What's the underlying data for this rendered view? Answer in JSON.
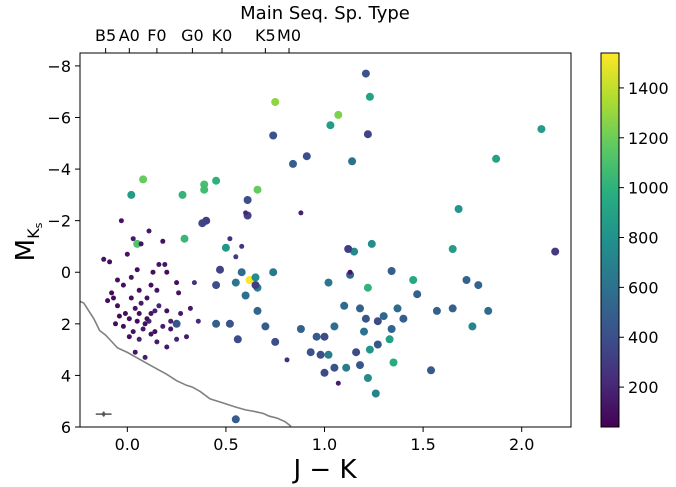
{
  "chart_data": {
    "type": "scatter",
    "xlabel": "J − K",
    "ylabel": "M",
    "ylabel_sub": "K",
    "ylabel_subsub": "s",
    "xlim": [
      -0.24,
      2.25
    ],
    "ylim": [
      6,
      -8.5
    ],
    "y_inverted": true,
    "x_ticks": [
      {
        "v": 0.0,
        "label": "0.0"
      },
      {
        "v": 0.5,
        "label": "0.5"
      },
      {
        "v": 1.0,
        "label": "1.0"
      },
      {
        "v": 1.5,
        "label": "1.5"
      },
      {
        "v": 2.0,
        "label": "2.0"
      }
    ],
    "y_ticks": [
      {
        "v": -8,
        "label": "−8"
      },
      {
        "v": -6,
        "label": "−6"
      },
      {
        "v": -4,
        "label": "−4"
      },
      {
        "v": -2,
        "label": "−2"
      },
      {
        "v": 0,
        "label": "0"
      },
      {
        "v": 2,
        "label": "2"
      },
      {
        "v": 4,
        "label": "4"
      },
      {
        "v": 6,
        "label": "6"
      }
    ],
    "top_axis": {
      "title": "Main Seq. Sp. Type",
      "ticks": [
        {
          "v": -0.11,
          "label": "B5"
        },
        {
          "v": 0.01,
          "label": "A0"
        },
        {
          "v": 0.15,
          "label": "F0"
        },
        {
          "v": 0.33,
          "label": "G0"
        },
        {
          "v": 0.48,
          "label": "K0"
        },
        {
          "v": 0.7,
          "label": "K5"
        },
        {
          "v": 0.82,
          "label": "M0"
        }
      ]
    },
    "colorbar": {
      "colormap": "viridis",
      "range": [
        40,
        1540
      ],
      "ticks": [
        {
          "v": 200,
          "label": "200"
        },
        {
          "v": 400,
          "label": "400"
        },
        {
          "v": 600,
          "label": "600"
        },
        {
          "v": 800,
          "label": "800"
        },
        {
          "v": 1000,
          "label": "1000"
        },
        {
          "v": 1200,
          "label": "1200"
        },
        {
          "v": 1400,
          "label": "1400"
        }
      ]
    },
    "main_sequence_curve": [
      [
        -0.24,
        3.2
      ],
      [
        -0.22,
        3.4
      ],
      [
        -0.2,
        4.1
      ],
      [
        -0.17,
        5.1
      ],
      [
        -0.14,
        6.4
      ],
      [
        -0.11,
        6.9
      ],
      [
        -0.08,
        7.6
      ],
      [
        -0.05,
        8.3
      ],
      [
        0.0,
        8.8
      ],
      [
        0.05,
        9.4
      ],
      [
        0.1,
        10.0
      ],
      [
        0.15,
        10.6
      ],
      [
        0.2,
        11.2
      ],
      [
        0.25,
        11.9
      ],
      [
        0.3,
        12.4
      ],
      [
        0.33,
        12.6
      ],
      [
        0.37,
        13.1
      ],
      [
        0.42,
        13.9
      ],
      [
        0.48,
        14.3
      ],
      [
        0.55,
        14.8
      ],
      [
        0.6,
        15.1
      ],
      [
        0.65,
        15.3
      ],
      [
        0.69,
        15.5
      ],
      [
        0.72,
        15.8
      ],
      [
        0.76,
        16.0
      ],
      [
        0.8,
        16.4
      ],
      [
        0.83,
        16.9
      ]
    ],
    "error_bar": {
      "x": -0.12,
      "y": 5.5,
      "xerr": 0.04,
      "yerr": 0.1
    },
    "series": [
      {
        "points": [
          [
            0.62,
            0.3,
            1540
          ],
          [
            0.75,
            -6.6,
            1280
          ],
          [
            1.07,
            -6.1,
            1240
          ],
          [
            0.08,
            -3.6,
            1180
          ],
          [
            0.66,
            -3.2,
            1180
          ],
          [
            0.39,
            -3.4,
            1090
          ],
          [
            0.39,
            -3.2,
            1070
          ],
          [
            0.45,
            -3.55,
            1000
          ],
          [
            0.28,
            -3.0,
            1020
          ],
          [
            0.29,
            -1.3,
            1040
          ],
          [
            0.05,
            -1.1,
            1120
          ],
          [
            0.02,
            -3.0,
            860
          ],
          [
            1.23,
            -6.8,
            900
          ],
          [
            1.03,
            -5.7,
            870
          ],
          [
            1.87,
            -4.4,
            900
          ],
          [
            2.1,
            -5.55,
            860
          ],
          [
            1.22,
            0.6,
            1010
          ],
          [
            1.45,
            0.3,
            940
          ],
          [
            1.65,
            -0.9,
            860
          ],
          [
            1.68,
            -2.45,
            820
          ],
          [
            1.24,
            -1.1,
            780
          ],
          [
            1.15,
            -0.8,
            740
          ],
          [
            1.33,
            2.6,
            880
          ],
          [
            1.35,
            3.5,
            960
          ],
          [
            1.23,
            3.0,
            820
          ],
          [
            1.22,
            4.1,
            760
          ],
          [
            1.26,
            4.7,
            720
          ],
          [
            1.2,
            2.3,
            600
          ],
          [
            1.11,
            3.7,
            660
          ],
          [
            1.02,
            3.2,
            680
          ],
          [
            0.65,
            0.2,
            760
          ],
          [
            0.66,
            0.6,
            700
          ],
          [
            0.55,
            0.4,
            620
          ],
          [
            0.5,
            -0.95,
            820
          ],
          [
            0.66,
            1.5,
            540
          ],
          [
            0.74,
            0.0,
            640
          ],
          [
            0.58,
            0.0,
            560
          ],
          [
            0.6,
            0.9,
            580
          ],
          [
            1.02,
            0.4,
            620
          ],
          [
            1.13,
            0.1,
            520
          ],
          [
            1.34,
            -0.05,
            480
          ],
          [
            1.37,
            1.4,
            560
          ],
          [
            1.47,
            0.85,
            500
          ],
          [
            1.57,
            1.5,
            500
          ],
          [
            1.72,
            0.3,
            520
          ],
          [
            1.75,
            2.1,
            720
          ],
          [
            1.83,
            1.5,
            560
          ],
          [
            1.78,
            0.5,
            520
          ],
          [
            1.65,
            1.4,
            500
          ],
          [
            1.1,
            1.3,
            560
          ],
          [
            1.18,
            1.4,
            500
          ],
          [
            1.3,
            1.7,
            540
          ],
          [
            1.34,
            2.2,
            520
          ],
          [
            1.4,
            1.8,
            480
          ],
          [
            0.96,
            2.5,
            460
          ],
          [
            1.05,
            2.1,
            580
          ],
          [
            0.88,
            2.2,
            500
          ],
          [
            0.7,
            2.1,
            480
          ],
          [
            0.93,
            3.1,
            420
          ],
          [
            0.98,
            3.2,
            400
          ],
          [
            0.75,
            2.7,
            400
          ],
          [
            0.56,
            2.6,
            380
          ],
          [
            1.0,
            3.9,
            380
          ],
          [
            1.18,
            3.6,
            440
          ],
          [
            1.27,
            2.8,
            440
          ],
          [
            1.16,
            3.1,
            380
          ],
          [
            1.05,
            3.7,
            420
          ],
          [
            1.21,
            1.8,
            420
          ],
          [
            1.27,
            1.9,
            380
          ],
          [
            0.55,
            5.7,
            480
          ],
          [
            0.74,
            -5.3,
            420
          ],
          [
            0.84,
            -4.2,
            500
          ],
          [
            1.14,
            -4.3,
            600
          ],
          [
            0.91,
            -4.5,
            400
          ],
          [
            0.61,
            -2.8,
            400
          ],
          [
            0.61,
            -2.2,
            340
          ],
          [
            0.38,
            -1.9,
            360
          ],
          [
            0.4,
            -2.0,
            330
          ],
          [
            1.22,
            -5.35,
            340
          ],
          [
            1.21,
            -7.7,
            420
          ],
          [
            2.17,
            -0.8,
            300
          ],
          [
            1.12,
            -0.9,
            320
          ],
          [
            1.0,
            2.5,
            380
          ],
          [
            1.54,
            3.8,
            460
          ],
          [
            0.25,
            2.0,
            440
          ],
          [
            0.52,
            2.0,
            420
          ],
          [
            0.45,
            2.0,
            500
          ],
          [
            0.45,
            0.5,
            400
          ],
          [
            0.47,
            -0.1,
            340
          ],
          [
            0.65,
            0.5,
            320
          ]
        ]
      },
      {
        "points": [
          [
            0.6,
            -2.3,
            200
          ],
          [
            0.88,
            -2.3,
            180
          ],
          [
            0.52,
            -1.3,
            240
          ],
          [
            0.55,
            -0.6,
            300
          ],
          [
            0.58,
            -1.0,
            260
          ],
          [
            1.13,
            0.0,
            120
          ],
          [
            1.07,
            4.3,
            160
          ],
          [
            0.81,
            3.4,
            240
          ],
          [
            0.34,
            0.4,
            260
          ],
          [
            0.36,
            1.9,
            220
          ],
          [
            0.22,
            1.9,
            180
          ],
          [
            0.18,
            2.1,
            160
          ],
          [
            0.14,
            1.5,
            180
          ],
          [
            0.11,
            1.9,
            200
          ],
          [
            0.15,
            2.7,
            160
          ],
          [
            0.16,
            1.3,
            200
          ],
          [
            0.12,
            1.6,
            120
          ],
          [
            0.08,
            2.2,
            140
          ],
          [
            0.1,
            1.8,
            100
          ],
          [
            0.04,
            1.4,
            120
          ],
          [
            0.03,
            2.3,
            110
          ],
          [
            0.01,
            1.8,
            100
          ],
          [
            -0.01,
            1.6,
            90
          ],
          [
            -0.04,
            1.7,
            80
          ],
          [
            -0.05,
            1.3,
            100
          ],
          [
            0.07,
            1.2,
            160
          ],
          [
            0.06,
            2.6,
            180
          ],
          [
            0.09,
            3.3,
            160
          ],
          [
            0.2,
            2.9,
            140
          ],
          [
            0.25,
            2.6,
            180
          ],
          [
            0.3,
            2.5,
            160
          ],
          [
            0.27,
            1.6,
            140
          ],
          [
            0.32,
            1.4,
            140
          ],
          [
            0.15,
            0.7,
            120
          ],
          [
            0.13,
            0.0,
            100
          ],
          [
            0.16,
            -0.3,
            120
          ],
          [
            0.05,
            -0.1,
            100
          ],
          [
            0.02,
            0.2,
            120
          ],
          [
            -0.02,
            0.5,
            100
          ],
          [
            -0.05,
            0.3,
            90
          ],
          [
            -0.08,
            0.8,
            80
          ],
          [
            -0.1,
            1.1,
            80
          ],
          [
            -0.06,
            2.0,
            90
          ],
          [
            0.06,
            0.7,
            100
          ],
          [
            0.1,
            1.0,
            120
          ],
          [
            0.12,
            2.4,
            110
          ],
          [
            0.04,
            3.1,
            120
          ],
          [
            0.22,
            2.2,
            120
          ],
          [
            0.0,
            -0.7,
            120
          ],
          [
            -0.03,
            -2.0,
            120
          ],
          [
            0.11,
            -1.6,
            140
          ],
          [
            0.07,
            -1.1,
            120
          ],
          [
            0.18,
            -1.2,
            100
          ],
          [
            0.03,
            -1.3,
            140
          ],
          [
            -0.12,
            -0.5,
            120
          ],
          [
            -0.09,
            -0.4,
            100
          ],
          [
            0.19,
            -0.3,
            120
          ],
          [
            0.25,
            0.4,
            100
          ],
          [
            0.26,
            0.8,
            120
          ],
          [
            0.2,
            1.5,
            100
          ],
          [
            0.09,
            2.0,
            90
          ],
          [
            -0.02,
            2.1,
            90
          ],
          [
            0.01,
            2.5,
            100
          ],
          [
            0.06,
            1.6,
            90
          ],
          [
            0.14,
            2.3,
            100
          ],
          [
            0.05,
            1.9,
            80
          ],
          [
            -0.07,
            1.0,
            80
          ],
          [
            0.02,
            1.0,
            90
          ],
          [
            0.12,
            0.5,
            90
          ],
          [
            0.2,
            0.0,
            100
          ]
        ]
      }
    ]
  }
}
